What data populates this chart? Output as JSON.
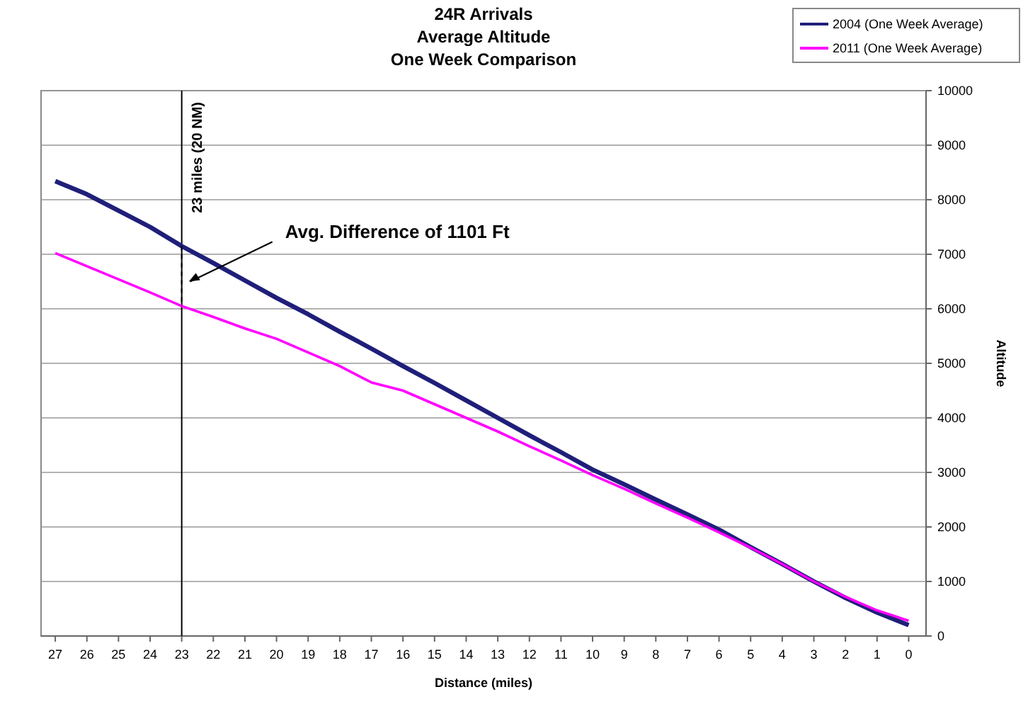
{
  "chart_data": {
    "type": "line",
    "title": "24R Arrivals\nAverage Altitude\nOne Week Comparison",
    "xlabel": "Distance (miles)",
    "ylabel": "Altitude",
    "x": [
      27,
      26,
      25,
      24,
      23,
      22,
      21,
      20,
      19,
      18,
      17,
      16,
      15,
      14,
      13,
      12,
      11,
      10,
      9,
      8,
      7,
      6,
      5,
      4,
      3,
      2,
      1,
      0
    ],
    "series": [
      {
        "name": "2004 (One Week Average)",
        "color": "#1f1f7a",
        "values": [
          8340,
          8100,
          7800,
          7500,
          7150,
          6840,
          6520,
          6200,
          5900,
          5580,
          5270,
          4950,
          4640,
          4320,
          4000,
          3680,
          3370,
          3050,
          2780,
          2500,
          2230,
          1950,
          1630,
          1320,
          1000,
          700,
          430,
          200
        ]
      },
      {
        "name": "2011 (One Week Average)",
        "color": "#ff00ff",
        "values": [
          7020,
          6780,
          6540,
          6300,
          6050,
          5850,
          5640,
          5450,
          5200,
          4950,
          4650,
          4500,
          4250,
          4000,
          3750,
          3480,
          3220,
          2950,
          2700,
          2430,
          2170,
          1900,
          1620,
          1320,
          1000,
          720,
          470,
          280
        ]
      }
    ],
    "xlim": [
      27.45,
      -0.55
    ],
    "xticks": [
      27,
      26,
      25,
      24,
      23,
      22,
      21,
      20,
      19,
      18,
      17,
      16,
      15,
      14,
      13,
      12,
      11,
      10,
      9,
      8,
      7,
      6,
      5,
      4,
      3,
      2,
      1,
      0
    ],
    "ylim": [
      0,
      10000
    ],
    "yticks": [
      0,
      1000,
      2000,
      3000,
      4000,
      5000,
      6000,
      7000,
      8000,
      9000,
      10000
    ],
    "ref_lines": [
      {
        "axis": "x",
        "value": 23,
        "label": "23 miles (20 NM)",
        "color": "#000000"
      }
    ],
    "annotations": [
      {
        "text": "Avg. Difference of 1101 Ft",
        "x": 23,
        "y": 6500
      }
    ],
    "grid": "y",
    "legend": "top right",
    "marker": "none",
    "line_style": "solid"
  }
}
